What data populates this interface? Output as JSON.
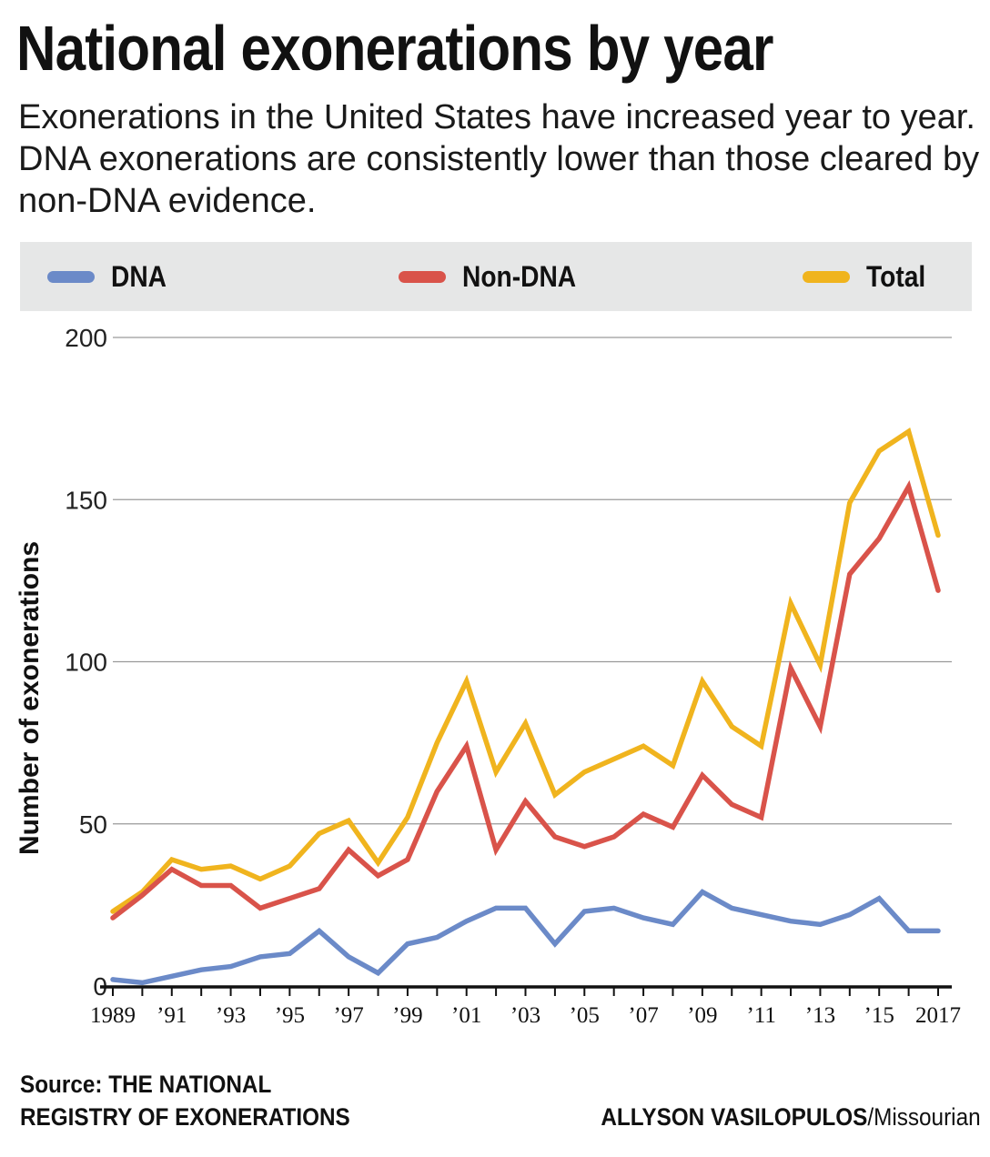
{
  "title": "National exonerations by year",
  "subtitle": "Exonerations in the United States have increased year to year. DNA exonerations are consistently lower than those cleared by non-DNA evidence.",
  "legend": [
    {
      "label": "DNA",
      "color": "#6b8ac8"
    },
    {
      "label": "Non-DNA",
      "color": "#d9534a"
    },
    {
      "label": "Total",
      "color": "#f0b41e"
    }
  ],
  "source": {
    "line1": "Source: THE NATIONAL",
    "line2": "REGISTRY OF EXONERATIONS"
  },
  "credit": {
    "author": "ALLYSON VASILOPULOS",
    "outlet": "/Missourian"
  },
  "chart_data": {
    "type": "line",
    "title": "National exonerations by year",
    "xlabel": "",
    "ylabel": "Number of exonerations",
    "ylim": [
      0,
      200
    ],
    "yticks": [
      0,
      50,
      100,
      150,
      200
    ],
    "grid": true,
    "x": [
      1989,
      1990,
      1991,
      1992,
      1993,
      1994,
      1995,
      1996,
      1997,
      1998,
      1999,
      2000,
      2001,
      2002,
      2003,
      2004,
      2005,
      2006,
      2007,
      2008,
      2009,
      2010,
      2011,
      2012,
      2013,
      2014,
      2015,
      2016,
      2017
    ],
    "xtick_labels": [
      {
        "x": 1989,
        "label": "1989"
      },
      {
        "x": 1991,
        "label": "’91"
      },
      {
        "x": 1993,
        "label": "’93"
      },
      {
        "x": 1995,
        "label": "’95"
      },
      {
        "x": 1997,
        "label": "’97"
      },
      {
        "x": 1999,
        "label": "’99"
      },
      {
        "x": 2001,
        "label": "’01"
      },
      {
        "x": 2003,
        "label": "’03"
      },
      {
        "x": 2005,
        "label": "’05"
      },
      {
        "x": 2007,
        "label": "’07"
      },
      {
        "x": 2009,
        "label": "’09"
      },
      {
        "x": 2011,
        "label": "’11"
      },
      {
        "x": 2013,
        "label": "’13"
      },
      {
        "x": 2015,
        "label": "’15"
      },
      {
        "x": 2017,
        "label": "2017"
      }
    ],
    "series": [
      {
        "name": "DNA",
        "color": "#6b8ac8",
        "values": [
          2,
          1,
          3,
          5,
          6,
          9,
          10,
          17,
          9,
          4,
          13,
          15,
          20,
          24,
          24,
          13,
          23,
          24,
          21,
          19,
          29,
          24,
          22,
          20,
          19,
          22,
          27,
          17,
          17
        ]
      },
      {
        "name": "Non-DNA",
        "color": "#d9534a",
        "values": [
          21,
          28,
          36,
          31,
          31,
          24,
          27,
          30,
          42,
          34,
          39,
          60,
          74,
          42,
          57,
          46,
          43,
          46,
          53,
          49,
          65,
          56,
          52,
          98,
          80,
          127,
          138,
          154,
          122
        ]
      },
      {
        "name": "Total",
        "color": "#f0b41e",
        "values": [
          23,
          29,
          39,
          36,
          37,
          33,
          37,
          47,
          51,
          38,
          52,
          75,
          94,
          66,
          81,
          59,
          66,
          70,
          74,
          68,
          94,
          80,
          74,
          118,
          99,
          149,
          165,
          171,
          139
        ]
      }
    ]
  }
}
